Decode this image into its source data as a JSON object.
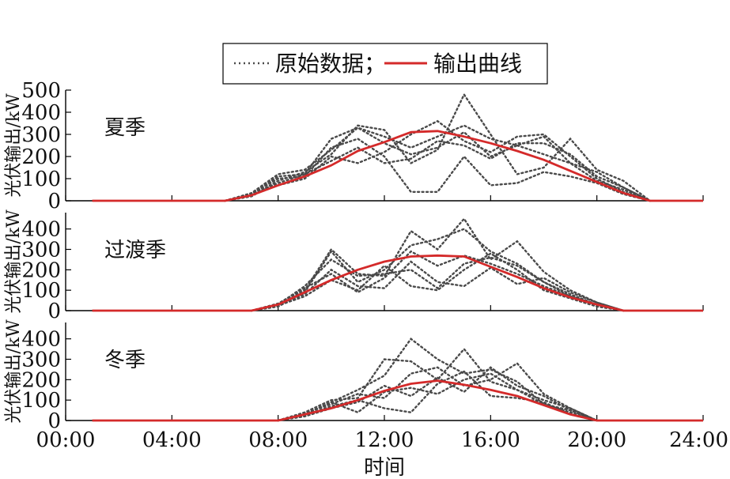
{
  "legend": {
    "raw_label": "原始数据；",
    "output_label": "输出曲线"
  },
  "chart_data": {
    "type": "line",
    "x_unit": "hour",
    "xlabel": "时间",
    "xlim": [
      0,
      24
    ],
    "x_ticks": [
      "00:00",
      "04:00",
      "08:00",
      "12:00",
      "16:00",
      "20:00",
      "24:00"
    ],
    "colors": {
      "raw": "#4a4a4a",
      "output": "#d42a2a"
    },
    "panels": [
      {
        "label": "夏季",
        "ylabel": "光伏输出/kW",
        "ylim": [
          0,
          500
        ],
        "y_ticks": [
          0,
          100,
          200,
          300,
          400,
          500
        ],
        "output": {
          "x": [
            1,
            6,
            7,
            8,
            9,
            10,
            11,
            12,
            13,
            14,
            15,
            16,
            17,
            18,
            19,
            20,
            21,
            22,
            24
          ],
          "y": [
            0,
            0,
            25,
            70,
            110,
            160,
            225,
            265,
            310,
            315,
            290,
            260,
            225,
            185,
            135,
            85,
            35,
            0,
            0
          ]
        },
        "raw": [
          {
            "x": [
              6,
              7,
              8,
              9,
              10,
              11,
              12,
              13,
              14,
              15,
              16,
              17,
              18,
              19,
              20,
              21,
              22
            ],
            "y": [
              0,
              30,
              110,
              120,
              280,
              330,
              290,
              240,
              290,
              340,
              280,
              250,
              210,
              170,
              130,
              60,
              0
            ]
          },
          {
            "x": [
              6,
              7,
              8,
              9,
              10,
              11,
              12,
              13,
              14,
              15,
              16,
              17,
              18,
              19,
              20,
              21,
              22
            ],
            "y": [
              0,
              20,
              90,
              130,
              210,
              340,
              320,
              170,
              230,
              480,
              300,
              120,
              150,
              280,
              140,
              90,
              0
            ]
          },
          {
            "x": [
              6,
              7,
              8,
              9,
              10,
              11,
              12,
              13,
              14,
              15,
              16,
              17,
              18,
              19,
              20,
              21,
              22
            ],
            "y": [
              0,
              25,
              70,
              100,
              200,
              170,
              220,
              300,
              360,
              270,
              220,
              290,
              300,
              200,
              100,
              40,
              0
            ]
          },
          {
            "x": [
              6,
              7,
              8,
              9,
              10,
              11,
              12,
              13,
              14,
              15,
              16,
              17,
              18,
              19,
              20,
              21,
              22
            ],
            "y": [
              0,
              30,
              100,
              110,
              240,
              280,
              200,
              40,
              40,
              200,
              70,
              80,
              130,
              110,
              80,
              30,
              0
            ]
          },
          {
            "x": [
              6,
              7,
              8,
              9,
              10,
              11,
              12,
              13,
              14,
              15,
              16,
              17,
              18,
              19,
              20,
              21,
              22
            ],
            "y": [
              0,
              35,
              120,
              140,
              230,
              330,
              260,
              210,
              240,
              310,
              200,
              250,
              290,
              170,
              90,
              50,
              0
            ]
          },
          {
            "x": [
              6,
              7,
              8,
              9,
              10,
              11,
              12,
              13,
              14,
              15,
              16,
              17,
              18,
              19,
              20,
              21,
              22
            ],
            "y": [
              0,
              30,
              80,
              120,
              180,
              240,
              170,
              190,
              270,
              250,
              190,
              260,
              260,
              210,
              110,
              60,
              0
            ]
          }
        ]
      },
      {
        "label": "过渡季",
        "ylabel": "光伏输出/kW",
        "ylim": [
          0,
          480
        ],
        "y_ticks": [
          0,
          100,
          200,
          300,
          400
        ],
        "output": {
          "x": [
            1,
            7,
            8,
            9,
            10,
            11,
            12,
            13,
            14,
            15,
            16,
            17,
            18,
            19,
            20,
            21,
            24
          ],
          "y": [
            0,
            0,
            30,
            90,
            150,
            200,
            240,
            265,
            270,
            265,
            215,
            165,
            110,
            65,
            30,
            0,
            0
          ]
        },
        "raw": [
          {
            "x": [
              7,
              8,
              9,
              10,
              11,
              12,
              13,
              14,
              15,
              16,
              17,
              18,
              19,
              20,
              21
            ],
            "y": [
              0,
              30,
              100,
              300,
              180,
              170,
              390,
              300,
              450,
              250,
              340,
              190,
              100,
              40,
              0
            ]
          },
          {
            "x": [
              7,
              8,
              9,
              10,
              11,
              12,
              13,
              14,
              15,
              16,
              17,
              18,
              19,
              20,
              21
            ],
            "y": [
              0,
              20,
              90,
              290,
              140,
              200,
              320,
              350,
              400,
              290,
              230,
              140,
              80,
              30,
              0
            ]
          },
          {
            "x": [
              7,
              8,
              9,
              10,
              11,
              12,
              13,
              14,
              15,
              16,
              17,
              18,
              19,
              20,
              21
            ],
            "y": [
              0,
              30,
              80,
              200,
              120,
              110,
              240,
              140,
              120,
              210,
              130,
              160,
              90,
              40,
              0
            ]
          },
          {
            "x": [
              7,
              8,
              9,
              10,
              11,
              12,
              13,
              14,
              15,
              16,
              17,
              18,
              19,
              20,
              21
            ],
            "y": [
              0,
              35,
              110,
              180,
              90,
              160,
              290,
              220,
              270,
              230,
              180,
              120,
              70,
              30,
              0
            ]
          },
          {
            "x": [
              7,
              8,
              9,
              10,
              11,
              12,
              13,
              14,
              15,
              16,
              17,
              18,
              19,
              20,
              21
            ],
            "y": [
              0,
              25,
              70,
              150,
              100,
              220,
              120,
              100,
              200,
              280,
              200,
              100,
              60,
              20,
              0
            ]
          },
          {
            "x": [
              7,
              8,
              9,
              10,
              11,
              12,
              13,
              14,
              15,
              16,
              17,
              18,
              19,
              20,
              21
            ],
            "y": [
              0,
              30,
              120,
              250,
              170,
              180,
              200,
              110,
              230,
              260,
              220,
              140,
              70,
              30,
              0
            ]
          }
        ]
      },
      {
        "label": "冬季",
        "ylabel": "光伏输出/kW",
        "ylim": [
          0,
          480
        ],
        "y_ticks": [
          0,
          100,
          200,
          300,
          400
        ],
        "output": {
          "x": [
            1,
            8,
            9,
            10,
            11,
            12,
            13,
            14,
            15,
            16,
            17,
            18,
            19,
            20,
            24
          ],
          "y": [
            0,
            0,
            30,
            60,
            100,
            145,
            180,
            195,
            175,
            150,
            120,
            75,
            30,
            0,
            0
          ]
        },
        "raw": [
          {
            "x": [
              8,
              9,
              10,
              11,
              12,
              13,
              14,
              15,
              16,
              17,
              18,
              19,
              20
            ],
            "y": [
              0,
              40,
              100,
              110,
              300,
              290,
              200,
              350,
              190,
              150,
              100,
              60,
              0
            ]
          },
          {
            "x": [
              8,
              9,
              10,
              11,
              12,
              13,
              14,
              15,
              16,
              17,
              18,
              19,
              20
            ],
            "y": [
              0,
              30,
              90,
              150,
              220,
              400,
              300,
              230,
              250,
              190,
              80,
              40,
              0
            ]
          },
          {
            "x": [
              8,
              9,
              10,
              11,
              12,
              13,
              14,
              15,
              16,
              17,
              18,
              19,
              20
            ],
            "y": [
              0,
              20,
              60,
              90,
              170,
              120,
              210,
              140,
              260,
              170,
              120,
              50,
              0
            ]
          },
          {
            "x": [
              8,
              9,
              10,
              11,
              12,
              13,
              14,
              15,
              16,
              17,
              18,
              19,
              20
            ],
            "y": [
              0,
              35,
              80,
              130,
              110,
              230,
              260,
              170,
              200,
              280,
              130,
              60,
              0
            ]
          },
          {
            "x": [
              8,
              9,
              10,
              11,
              12,
              13,
              14,
              15,
              16,
              17,
              18,
              19,
              20
            ],
            "y": [
              0,
              25,
              70,
              100,
              60,
              40,
              180,
              240,
              120,
              110,
              90,
              30,
              0
            ]
          },
          {
            "x": [
              8,
              9,
              10,
              11,
              12,
              13,
              14,
              15,
              16,
              17,
              18,
              19,
              20
            ],
            "y": [
              0,
              30,
              90,
              40,
              140,
              160,
              130,
              200,
              230,
              150,
              80,
              50,
              0
            ]
          }
        ]
      }
    ]
  }
}
